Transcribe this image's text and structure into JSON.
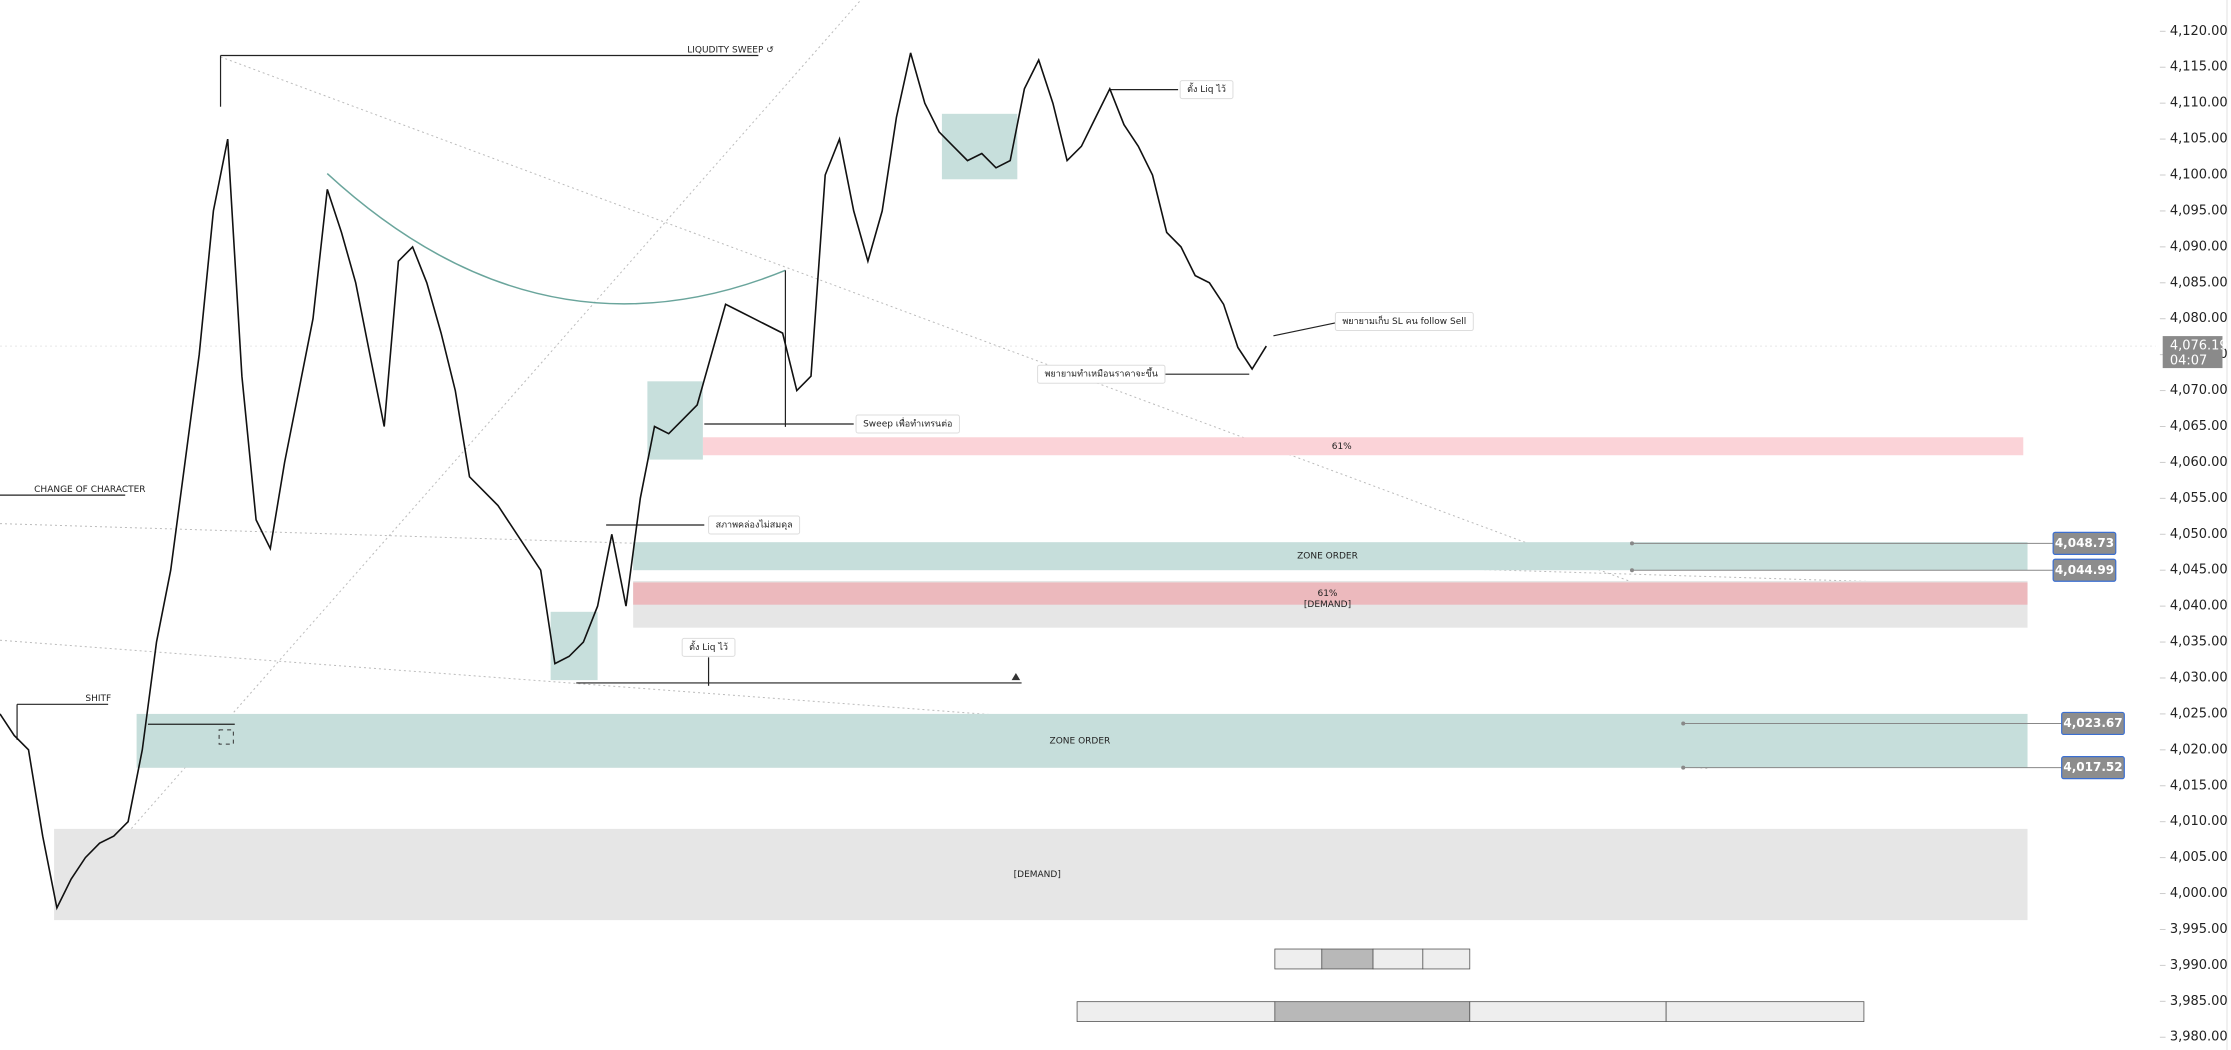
{
  "chart_data": {
    "type": "line",
    "color": "#111111",
    "values": [
      4025,
      4022,
      4020,
      4008,
      3998,
      4002,
      4005,
      4007,
      4008,
      4010,
      4020,
      4035,
      4045,
      4060,
      4075,
      4095,
      4105,
      4072,
      4052,
      4048,
      4060,
      4070,
      4080,
      4098,
      4092,
      4085,
      4075,
      4065,
      4088,
      4090,
      4085,
      4078,
      4070,
      4058,
      4056,
      4054,
      4051,
      4048,
      4045,
      4032,
      4033,
      4035,
      4040,
      4050,
      4040,
      4055,
      4065,
      4064,
      4066,
      4068,
      4075,
      4082,
      4081,
      4080,
      4079,
      4078,
      4070,
      4072,
      4100,
      4105,
      4095,
      4088,
      4095,
      4108,
      4117,
      4110,
      4106,
      4104,
      4102,
      4103,
      4101,
      4102,
      4112,
      4116,
      4110,
      4102,
      4104,
      4108,
      4112,
      4107,
      4104,
      4100,
      4092,
      4090,
      4086,
      4085,
      4082,
      4076,
      4073,
      4076.19
    ],
    "ylim": [
      3980,
      4120
    ],
    "yticks": [
      {
        "value": 3980,
        "label": "3,980.00"
      },
      {
        "value": 3985,
        "label": "3,985.00"
      },
      {
        "value": 3990,
        "label": "3,990.00"
      },
      {
        "value": 3995,
        "label": "3,995.00"
      },
      {
        "value": 4000,
        "label": "4,000.00"
      },
      {
        "value": 4005,
        "label": "4,005.00"
      },
      {
        "value": 4010,
        "label": "4,010.00"
      },
      {
        "value": 4015,
        "label": "4,015.00"
      },
      {
        "value": 4020,
        "label": "4,020.00"
      },
      {
        "value": 4025,
        "label": "4,025.00"
      },
      {
        "value": 4030,
        "label": "4,030.00"
      },
      {
        "value": 4035,
        "label": "4,035.00"
      },
      {
        "value": 4040,
        "label": "4,040.00"
      },
      {
        "value": 4045,
        "label": "4,045.00"
      },
      {
        "value": 4050,
        "label": "4,050.00"
      },
      {
        "value": 4055,
        "label": "4,055.00"
      },
      {
        "value": 4060,
        "label": "4,060.00"
      },
      {
        "value": 4065,
        "label": "4,065.00"
      },
      {
        "value": 4070,
        "label": "4,070.00"
      },
      {
        "value": 4075,
        "label": "4,075.00"
      },
      {
        "value": 4080,
        "label": "4,080.00"
      },
      {
        "value": 4085,
        "label": "4,085.00"
      },
      {
        "value": 4090,
        "label": "4,090.00"
      },
      {
        "value": 4095,
        "label": "4,095.00"
      },
      {
        "value": 4100,
        "label": "4,100.00"
      },
      {
        "value": 4105,
        "label": "4,105.00"
      },
      {
        "value": 4110,
        "label": "4,110.00"
      },
      {
        "value": 4115,
        "label": "4,115.00"
      },
      {
        "value": 4120,
        "label": "4,120.00"
      }
    ],
    "last_price": {
      "value": 4076.19,
      "label": "4,076.19",
      "countdown": "04:07"
    },
    "price_labels": [
      {
        "value": 4048.73,
        "label": "4,048.73"
      },
      {
        "value": 4044.99,
        "label": "4,044.99"
      },
      {
        "value": 4023.67,
        "label": "4,023.67"
      },
      {
        "value": 4017.52,
        "label": "4,017.52"
      }
    ],
    "zones": [
      {
        "label": "61%",
        "top": 4063.5,
        "bottom": 4061,
        "color": "#fbd3d8"
      },
      {
        "label": "ZONE ORDER",
        "top": 4048.9,
        "bottom": 4045,
        "color": "#c6dedb"
      },
      {
        "label": "[DEMAND]",
        "top": 4043.5,
        "bottom": 4037,
        "color": "#e6e6e6"
      },
      {
        "label": "61%",
        "top": 4043.3,
        "bottom": 4040.2,
        "color": "#ecb9bd"
      },
      {
        "label": "ZONE ORDER",
        "top": 4025,
        "bottom": 4017.5,
        "color": "#c6dedb"
      },
      {
        "label": "[DEMAND]",
        "top": 4009,
        "bottom": 3996.3,
        "color": "#e6e6e6"
      }
    ],
    "annotations": [
      "LIQUDITY SWEEP ↺",
      "CHANGE OF CHARACTER",
      "SHITF",
      "ตั้ง Liq ไว้",
      "พยายามเก็บ SL คน follow Sell",
      "พยายามทำเหมือนราคาจะขึ้น",
      "Sweep เพื่อทำเทรนต่อ",
      "สภาพคล่องไม่สมดุล",
      "ตั้ง Liq ไว้"
    ]
  }
}
